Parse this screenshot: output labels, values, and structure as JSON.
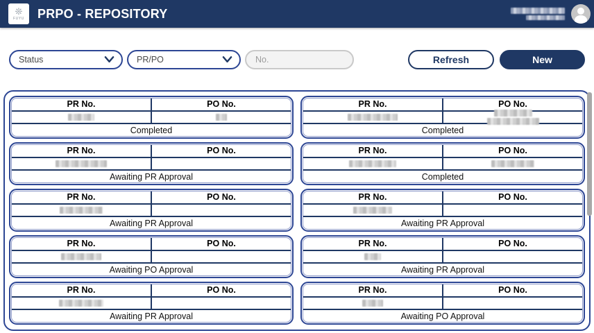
{
  "header": {
    "title": "PRPO - REPOSITORY",
    "logo_text": "FUYU",
    "user_name_redacted": true
  },
  "filters": {
    "status_dropdown": {
      "value": "Status"
    },
    "type_dropdown": {
      "value": "PR/PO"
    },
    "number_input": {
      "value": "",
      "placeholder": "No."
    }
  },
  "buttons": {
    "refresh": "Refresh",
    "new": "New"
  },
  "card_labels": {
    "pr": "PR No.",
    "po": "PO No."
  },
  "statuses_seen": [
    "Completed",
    "Awaiting PR Approval",
    "Awaiting PO Approval"
  ],
  "cards": [
    {
      "status": "Completed",
      "pr_redacted": true,
      "pr_w": 38,
      "po_redacted": true,
      "po_w": 16
    },
    {
      "status": "Completed",
      "pr_redacted": true,
      "pr_w": 72,
      "po_redacted": true,
      "po_w": 75,
      "po_lines": 2,
      "po_w2": 55
    },
    {
      "status": "Awaiting PR Approval",
      "pr_redacted": true,
      "pr_w": 74,
      "po_redacted": false,
      "po_w": 0
    },
    {
      "status": "Completed",
      "pr_redacted": true,
      "pr_w": 68,
      "po_redacted": true,
      "po_w": 62
    },
    {
      "status": "Awaiting PR Approval",
      "pr_redacted": true,
      "pr_w": 62,
      "po_redacted": false,
      "po_w": 0
    },
    {
      "status": "Awaiting PR Approval",
      "pr_redacted": true,
      "pr_w": 56,
      "po_redacted": false,
      "po_w": 0
    },
    {
      "status": "Awaiting PO Approval",
      "pr_redacted": true,
      "pr_w": 58,
      "po_redacted": false,
      "po_w": 0
    },
    {
      "status": "Awaiting PR Approval",
      "pr_redacted": true,
      "pr_w": 24,
      "po_redacted": false,
      "po_w": 0
    },
    {
      "status": "Awaiting PR Approval",
      "pr_redacted": true,
      "pr_w": 64,
      "po_redacted": false,
      "po_w": 0
    },
    {
      "status": "Awaiting PO Approval",
      "pr_redacted": true,
      "pr_w": 30,
      "po_redacted": false,
      "po_w": 0
    }
  ],
  "colors": {
    "navy": "#1f3864",
    "card_border": "#2d4694",
    "card_inner_border": "#8d99c9",
    "scrollbar_thumb": "#a8a8a8"
  }
}
